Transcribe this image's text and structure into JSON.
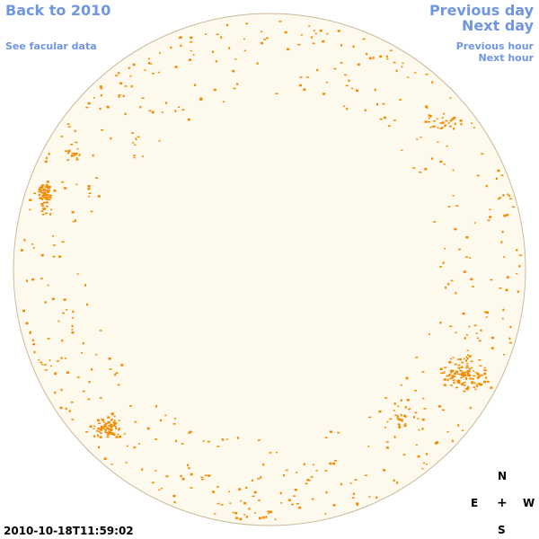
{
  "nav": {
    "back": "Back to 2010",
    "facular": "See facular data",
    "prev_day": "Previous day",
    "next_day": "Next day",
    "prev_hour": "Previous hour",
    "next_hour": "Next hour"
  },
  "timestamp": "2010-10-18T11:59:02",
  "compass": {
    "n": "N",
    "e": "E",
    "plus": "+",
    "w": "W",
    "s": "S"
  },
  "colors": {
    "disk_fill": "#fdf9ec",
    "disk_stroke": "#c9b99a",
    "facula": "#f28a00",
    "link": "#6f96e0"
  }
}
